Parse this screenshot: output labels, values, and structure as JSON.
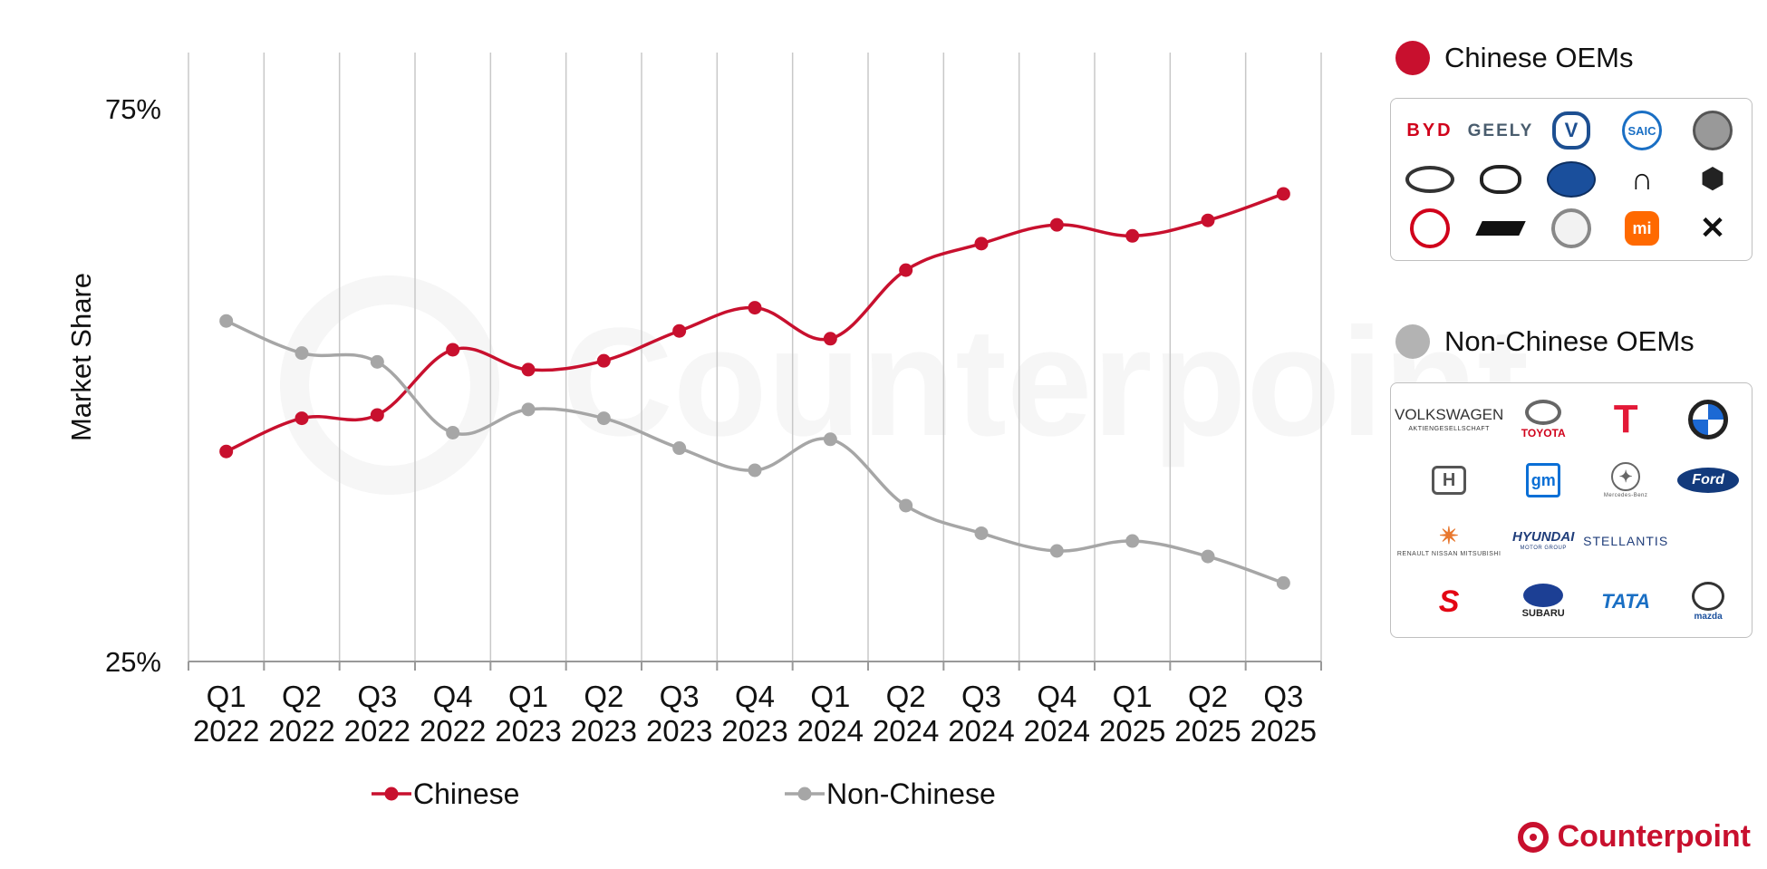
{
  "chart_data": {
    "type": "line",
    "categories": [
      [
        "Q1",
        "2022"
      ],
      [
        "Q2",
        "2022"
      ],
      [
        "Q3",
        "2022"
      ],
      [
        "Q4",
        "2022"
      ],
      [
        "Q1",
        "2023"
      ],
      [
        "Q2",
        "2023"
      ],
      [
        "Q3",
        "2023"
      ],
      [
        "Q4",
        "2023"
      ],
      [
        "Q1",
        "2024"
      ],
      [
        "Q2",
        "2024"
      ],
      [
        "Q3",
        "2024"
      ],
      [
        "Q4",
        "2024"
      ],
      [
        "Q1",
        "2025"
      ],
      [
        "Q2",
        "2025"
      ],
      [
        "Q3",
        "2025"
      ]
    ],
    "series": [
      {
        "name": "Chinese",
        "color": "#c8102e",
        "values": [
          44.0,
          47.0,
          47.3,
          53.2,
          51.4,
          52.2,
          54.9,
          57.0,
          54.2,
          60.4,
          62.8,
          64.5,
          63.5,
          64.9,
          67.3
        ]
      },
      {
        "name": "Non-Chinese",
        "color": "#a6a6a6",
        "values": [
          55.8,
          52.9,
          52.1,
          45.7,
          47.8,
          47.0,
          44.3,
          42.3,
          45.1,
          39.1,
          36.6,
          35.0,
          35.9,
          34.5,
          32.1
        ]
      }
    ],
    "ylabel": "Market Share",
    "yticks": [
      "75%",
      "25%"
    ],
    "ytick_values": [
      75,
      25
    ],
    "ylim": [
      25,
      80
    ],
    "grid": "vertical",
    "legend_position": "bottom"
  },
  "oem_groups": [
    {
      "title": "Chinese OEMs",
      "color": "#c8102e",
      "logos": [
        "BYD",
        "GEELY",
        "CHANGAN",
        "SAIC",
        "GWM",
        "CHERY",
        "GAC",
        "FAW",
        "NIO",
        "LEAPMOTOR",
        "DONGFENG",
        "LI AUTO",
        "BAIC",
        "XIAOMI",
        "XPENG"
      ]
    },
    {
      "title": "Non-Chinese OEMs",
      "color": "#b3b3b3",
      "logos": [
        "VOLKSWAGEN",
        "TOYOTA",
        "TESLA",
        "BMW",
        "HONDA",
        "GM",
        "MERCEDES-BENZ",
        "FORD",
        "RENAULT NISSAN MITSUBISHI",
        "HYUNDAI",
        "STELLANTIS",
        "SUZUKI",
        "SUBARU",
        "TATA",
        "MAZDA"
      ],
      "printed": {
        "volkswagen": "VOLKSWAGEN",
        "volkswagen_sub": "AKTIENGESELLSCHAFT",
        "toyota": "TOYOTA",
        "gm": "gm",
        "mercedes": "Mercedes-Benz",
        "ford": "Ford",
        "rnm": "RENAULT NISSAN MITSUBISHI",
        "hyundai": "HYUNDAI",
        "hyundai_sub": "MOTOR GROUP",
        "stellantis": "STELLANTIS",
        "subaru": "SUBARU",
        "tata": "TATA",
        "mazda": "mazda"
      }
    },
    {
      "printed": {
        "byd": "BYD",
        "geely": "GEELY",
        "saic": "SAIC",
        "xiaomi": "mi"
      }
    }
  ],
  "watermark": "Counterpoint",
  "brand": "Counterpoint"
}
